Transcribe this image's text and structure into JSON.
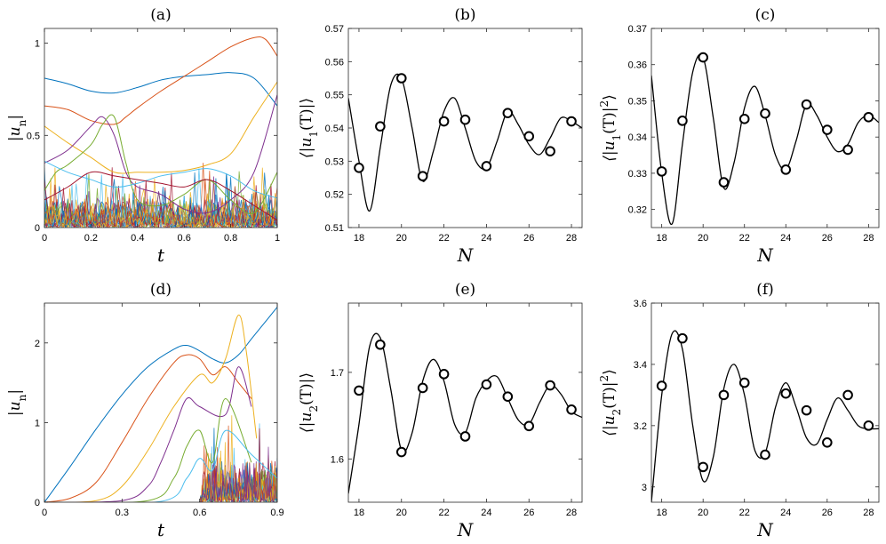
{
  "panels": {
    "a": {
      "label": "(a)",
      "xlabel": "t",
      "ylabel": "|u_n|",
      "xlim": [
        0,
        1
      ],
      "ylim": [
        0,
        1.08
      ],
      "xticks": [
        "0",
        "0.2",
        "0.4",
        "0.6",
        "0.8",
        "1"
      ],
      "xtick_values": [
        0,
        0.2,
        0.4,
        0.6,
        0.8,
        1
      ],
      "yticks": [
        "0",
        "0.5",
        "1"
      ],
      "ytick_values": [
        0,
        0.5,
        1
      ],
      "series": [
        {
          "color": "#0072BD",
          "x": [
            0,
            0.1,
            0.2,
            0.3,
            0.4,
            0.5,
            0.6,
            0.7,
            0.8,
            0.9,
            1
          ],
          "y": [
            0.81,
            0.78,
            0.74,
            0.73,
            0.76,
            0.8,
            0.82,
            0.83,
            0.84,
            0.81,
            0.66
          ]
        },
        {
          "color": "#D95319",
          "x": [
            0,
            0.1,
            0.2,
            0.3,
            0.35,
            0.4,
            0.5,
            0.6,
            0.7,
            0.8,
            0.9,
            0.95,
            1
          ],
          "y": [
            0.66,
            0.64,
            0.58,
            0.56,
            0.6,
            0.65,
            0.74,
            0.82,
            0.9,
            0.98,
            1.03,
            1.02,
            0.93
          ]
        },
        {
          "color": "#EDB120",
          "x": [
            0,
            0.1,
            0.2,
            0.3,
            0.4,
            0.5,
            0.6,
            0.7,
            0.8,
            0.9,
            1
          ],
          "y": [
            0.55,
            0.46,
            0.38,
            0.3,
            0.3,
            0.3,
            0.31,
            0.34,
            0.4,
            0.6,
            0.79
          ]
        },
        {
          "color": "#7E2F8E",
          "x": [
            0,
            0.1,
            0.2,
            0.25,
            0.3,
            0.35,
            0.4,
            0.5,
            0.6,
            0.7,
            0.8,
            0.9,
            1
          ],
          "y": [
            0.35,
            0.42,
            0.55,
            0.6,
            0.5,
            0.3,
            0.22,
            0.18,
            0.1,
            0.08,
            0.15,
            0.3,
            0.72
          ]
        },
        {
          "color": "#77AC30",
          "x": [
            0,
            0.05,
            0.1,
            0.2,
            0.25,
            0.3,
            0.35,
            0.4,
            0.5,
            0.6,
            0.7,
            0.8,
            0.9,
            1
          ],
          "y": [
            0.2,
            0.3,
            0.34,
            0.45,
            0.56,
            0.6,
            0.35,
            0.15,
            0.12,
            0.18,
            0.26,
            0.15,
            0.08,
            0.3
          ]
        },
        {
          "color": "#4DBEEE",
          "x": [
            0,
            0.1,
            0.2,
            0.3,
            0.4,
            0.5,
            0.6,
            0.7,
            0.8,
            0.9,
            1
          ],
          "y": [
            0.36,
            0.3,
            0.26,
            0.22,
            0.24,
            0.28,
            0.3,
            0.32,
            0.28,
            0.2,
            0.16
          ]
        },
        {
          "color": "#A2142F",
          "x": [
            0,
            0.1,
            0.2,
            0.3,
            0.4,
            0.5,
            0.6,
            0.7,
            0.8,
            0.9,
            1
          ],
          "y": [
            0.15,
            0.22,
            0.3,
            0.28,
            0.26,
            0.24,
            0.22,
            0.26,
            0.2,
            0.12,
            0.04
          ]
        }
      ]
    },
    "b": {
      "label": "(b)",
      "xlabel": "N",
      "ylabel": "⟨|u_1(T)|⟩",
      "xlim": [
        17.5,
        28.5
      ],
      "ylim": [
        0.51,
        0.57
      ],
      "xticks": [
        "18",
        "20",
        "22",
        "24",
        "26",
        "28"
      ],
      "xtick_values": [
        18,
        20,
        22,
        24,
        26,
        28
      ],
      "yticks": [
        "0.51",
        "0.52",
        "0.53",
        "0.54",
        "0.55",
        "0.56",
        "0.57"
      ],
      "ytick_values": [
        0.51,
        0.52,
        0.53,
        0.54,
        0.55,
        0.56,
        0.57
      ],
      "curve": {
        "x": [
          17.5,
          18.0,
          18.5,
          19.0,
          19.5,
          20.0,
          20.5,
          21.0,
          21.5,
          22.0,
          22.5,
          23.0,
          23.5,
          24.0,
          24.5,
          25.0,
          25.5,
          26.0,
          26.5,
          27.0,
          27.5,
          28.0,
          28.5
        ],
        "y": [
          0.549,
          0.53,
          0.515,
          0.534,
          0.553,
          0.555,
          0.54,
          0.524,
          0.533,
          0.545,
          0.549,
          0.54,
          0.53,
          0.528,
          0.536,
          0.545,
          0.541,
          0.535,
          0.532,
          0.537,
          0.543,
          0.542,
          0.54
        ]
      },
      "points": {
        "x": [
          18,
          19,
          20,
          21,
          22,
          23,
          24,
          25,
          26,
          27,
          28
        ],
        "y": [
          0.528,
          0.5405,
          0.555,
          0.5255,
          0.542,
          0.5425,
          0.5285,
          0.5445,
          0.5375,
          0.533,
          0.542
        ]
      }
    },
    "c": {
      "label": "(c)",
      "xlabel": "N",
      "ylabel": "⟨|u_1(T)|^2⟩",
      "xlim": [
        17.5,
        28.5
      ],
      "ylim": [
        0.315,
        0.37
      ],
      "xticks": [
        "18",
        "20",
        "22",
        "24",
        "26",
        "28"
      ],
      "xtick_values": [
        18,
        20,
        22,
        24,
        26,
        28
      ],
      "yticks": [
        "0.32",
        "0.33",
        "0.34",
        "0.35",
        "0.36",
        "0.37"
      ],
      "ytick_values": [
        0.32,
        0.33,
        0.34,
        0.35,
        0.36,
        0.37
      ],
      "curve": {
        "x": [
          17.5,
          18.0,
          18.5,
          19.0,
          19.5,
          20.0,
          20.5,
          21.0,
          21.5,
          22.0,
          22.5,
          23.0,
          23.5,
          24.0,
          24.5,
          25.0,
          25.5,
          26.0,
          26.5,
          27.0,
          27.5,
          28.0,
          28.5
        ],
        "y": [
          0.357,
          0.33,
          0.316,
          0.338,
          0.358,
          0.362,
          0.345,
          0.326,
          0.333,
          0.348,
          0.354,
          0.346,
          0.335,
          0.331,
          0.339,
          0.349,
          0.346,
          0.34,
          0.336,
          0.338,
          0.344,
          0.346,
          0.344
        ]
      },
      "points": {
        "x": [
          18,
          19,
          20,
          21,
          22,
          23,
          24,
          25,
          26,
          27,
          28
        ],
        "y": [
          0.3305,
          0.3445,
          0.362,
          0.3275,
          0.345,
          0.3465,
          0.331,
          0.349,
          0.342,
          0.3365,
          0.3455
        ]
      }
    },
    "d": {
      "label": "(d)",
      "xlabel": "t",
      "ylabel": "|u_n|",
      "xlim": [
        0,
        0.9
      ],
      "ylim": [
        0,
        2.5
      ],
      "xticks": [
        "0",
        "0.3",
        "0.6",
        "0.9"
      ],
      "xtick_values": [
        0,
        0.3,
        0.6,
        0.9
      ],
      "yticks": [
        "0",
        "1",
        "2"
      ],
      "ytick_values": [
        0,
        1,
        2
      ],
      "series": [
        {
          "color": "#0072BD",
          "x": [
            0,
            0.1,
            0.2,
            0.3,
            0.4,
            0.5,
            0.55,
            0.6,
            0.65,
            0.7,
            0.75,
            0.8,
            0.85,
            0.9
          ],
          "y": [
            0,
            0.45,
            0.92,
            1.35,
            1.7,
            1.92,
            1.97,
            1.9,
            1.8,
            1.75,
            1.85,
            2.05,
            2.25,
            2.45
          ]
        },
        {
          "color": "#D95319",
          "x": [
            0,
            0.1,
            0.2,
            0.3,
            0.4,
            0.5,
            0.55,
            0.6,
            0.65,
            0.7,
            0.75,
            0.8
          ],
          "y": [
            0,
            0.05,
            0.25,
            0.75,
            1.3,
            1.75,
            1.85,
            1.8,
            1.6,
            1.7,
            1.5,
            1.3
          ]
        },
        {
          "color": "#EDB120",
          "x": [
            0,
            0.2,
            0.3,
            0.4,
            0.5,
            0.6,
            0.65,
            0.7,
            0.75,
            0.78,
            0.82
          ],
          "y": [
            0,
            0.02,
            0.2,
            0.65,
            1.2,
            1.6,
            1.5,
            1.8,
            2.35,
            1.9,
            0.8
          ]
        },
        {
          "color": "#7E2F8E",
          "x": [
            0,
            0.3,
            0.4,
            0.45,
            0.5,
            0.55,
            0.6,
            0.7,
            0.75,
            0.8
          ],
          "y": [
            0,
            0.02,
            0.2,
            0.5,
            0.9,
            1.3,
            1.2,
            1.1,
            1.7,
            1.2
          ]
        },
        {
          "color": "#77AC30",
          "x": [
            0,
            0.4,
            0.5,
            0.55,
            0.6,
            0.65,
            0.7,
            0.8
          ],
          "y": [
            0,
            0.02,
            0.3,
            0.7,
            0.9,
            0.5,
            1.3,
            0.5
          ]
        },
        {
          "color": "#4DBEEE",
          "x": [
            0,
            0.45,
            0.55,
            0.6,
            0.65,
            0.7,
            0.8,
            0.9
          ],
          "y": [
            0,
            0.01,
            0.3,
            0.55,
            0.4,
            0.9,
            0.6,
            0.3
          ]
        }
      ]
    },
    "e": {
      "label": "(e)",
      "xlabel": "N",
      "ylabel": "⟨|u_2(T)|⟩",
      "xlim": [
        17.5,
        28.5
      ],
      "ylim": [
        1.55,
        1.78
      ],
      "xticks": [
        "18",
        "20",
        "22",
        "24",
        "26",
        "28"
      ],
      "xtick_values": [
        18,
        20,
        22,
        24,
        26,
        28
      ],
      "yticks": [
        "1.6",
        "1.7"
      ],
      "ytick_values": [
        1.6,
        1.7
      ],
      "curve": {
        "x": [
          17.5,
          18.0,
          18.5,
          19.0,
          19.5,
          20.0,
          20.5,
          21.0,
          21.5,
          22.0,
          22.5,
          23.0,
          23.5,
          24.0,
          24.5,
          25.0,
          25.5,
          26.0,
          26.5,
          27.0,
          27.5,
          28.0,
          28.5
        ],
        "y": [
          1.56,
          1.64,
          1.73,
          1.74,
          1.68,
          1.61,
          1.63,
          1.69,
          1.715,
          1.69,
          1.64,
          1.63,
          1.67,
          1.69,
          1.695,
          1.67,
          1.645,
          1.64,
          1.665,
          1.685,
          1.675,
          1.655,
          1.648
        ]
      },
      "points": {
        "x": [
          18,
          19,
          20,
          21,
          22,
          23,
          24,
          25,
          26,
          27,
          28
        ],
        "y": [
          1.679,
          1.732,
          1.608,
          1.682,
          1.698,
          1.626,
          1.686,
          1.672,
          1.638,
          1.685,
          1.657
        ]
      }
    },
    "f": {
      "label": "(f)",
      "xlabel": "N",
      "ylabel": "⟨|u_2(T)|^2⟩",
      "xlim": [
        17.5,
        28.5
      ],
      "ylim": [
        2.95,
        3.6
      ],
      "xticks": [
        "18",
        "20",
        "22",
        "24",
        "26",
        "28"
      ],
      "xtick_values": [
        18,
        20,
        22,
        24,
        26,
        28
      ],
      "yticks": [
        "3",
        "3.2",
        "3.4",
        "3.6"
      ],
      "ytick_values": [
        3.0,
        3.2,
        3.4,
        3.6
      ],
      "curve": {
        "x": [
          17.5,
          18.0,
          18.5,
          19.0,
          19.5,
          20.0,
          20.5,
          21.0,
          21.5,
          22.0,
          22.5,
          23.0,
          23.5,
          24.0,
          24.5,
          25.0,
          25.5,
          26.0,
          26.5,
          27.0,
          27.5,
          28.0,
          28.5
        ],
        "y": [
          2.95,
          3.3,
          3.5,
          3.45,
          3.2,
          3.02,
          3.1,
          3.32,
          3.4,
          3.3,
          3.12,
          3.11,
          3.26,
          3.34,
          3.26,
          3.16,
          3.14,
          3.22,
          3.29,
          3.25,
          3.2,
          3.19,
          3.19
        ]
      },
      "points": {
        "x": [
          18,
          19,
          20,
          21,
          22,
          23,
          24,
          25,
          26,
          27,
          28
        ],
        "y": [
          3.33,
          3.485,
          3.065,
          3.3,
          3.34,
          3.105,
          3.305,
          3.25,
          3.145,
          3.3,
          3.2
        ]
      }
    }
  },
  "chart_data": [
    {
      "type": "line",
      "title": "(a)",
      "xlabel": "t",
      "ylabel": "|u_n|",
      "xlim": [
        0,
        1
      ],
      "ylim": [
        0,
        1.08
      ],
      "series_count": 7
    },
    {
      "type": "line",
      "title": "(b)",
      "xlabel": "N",
      "ylabel": "⟨|u_1(T)|⟩",
      "xlim": [
        17.5,
        28.5
      ],
      "ylim": [
        0.51,
        0.57
      ],
      "marker_x": [
        18,
        19,
        20,
        21,
        22,
        23,
        24,
        25,
        26,
        27,
        28
      ],
      "marker_y": [
        0.528,
        0.5405,
        0.555,
        0.5255,
        0.542,
        0.5425,
        0.5285,
        0.5445,
        0.5375,
        0.533,
        0.542
      ]
    },
    {
      "type": "line",
      "title": "(c)",
      "xlabel": "N",
      "ylabel": "⟨|u_1(T)|^2⟩",
      "xlim": [
        17.5,
        28.5
      ],
      "ylim": [
        0.315,
        0.37
      ],
      "marker_x": [
        18,
        19,
        20,
        21,
        22,
        23,
        24,
        25,
        26,
        27,
        28
      ],
      "marker_y": [
        0.3305,
        0.3445,
        0.362,
        0.3275,
        0.345,
        0.3465,
        0.331,
        0.349,
        0.342,
        0.3365,
        0.3455
      ]
    },
    {
      "type": "line",
      "title": "(d)",
      "xlabel": "t",
      "ylabel": "|u_n|",
      "xlim": [
        0,
        0.9
      ],
      "ylim": [
        0,
        2.5
      ],
      "series_count": 6
    },
    {
      "type": "line",
      "title": "(e)",
      "xlabel": "N",
      "ylabel": "⟨|u_2(T)|⟩",
      "xlim": [
        17.5,
        28.5
      ],
      "ylim": [
        1.55,
        1.78
      ],
      "marker_x": [
        18,
        19,
        20,
        21,
        22,
        23,
        24,
        25,
        26,
        27,
        28
      ],
      "marker_y": [
        1.679,
        1.732,
        1.608,
        1.682,
        1.698,
        1.626,
        1.686,
        1.672,
        1.638,
        1.685,
        1.657
      ]
    },
    {
      "type": "line",
      "title": "(f)",
      "xlabel": "N",
      "ylabel": "⟨|u_2(T)|^2⟩",
      "xlim": [
        17.5,
        28.5
      ],
      "ylim": [
        2.95,
        3.6
      ],
      "marker_x": [
        18,
        19,
        20,
        21,
        22,
        23,
        24,
        25,
        26,
        27,
        28
      ],
      "marker_y": [
        3.33,
        3.485,
        3.065,
        3.3,
        3.34,
        3.105,
        3.305,
        3.25,
        3.145,
        3.3,
        3.2
      ]
    }
  ]
}
